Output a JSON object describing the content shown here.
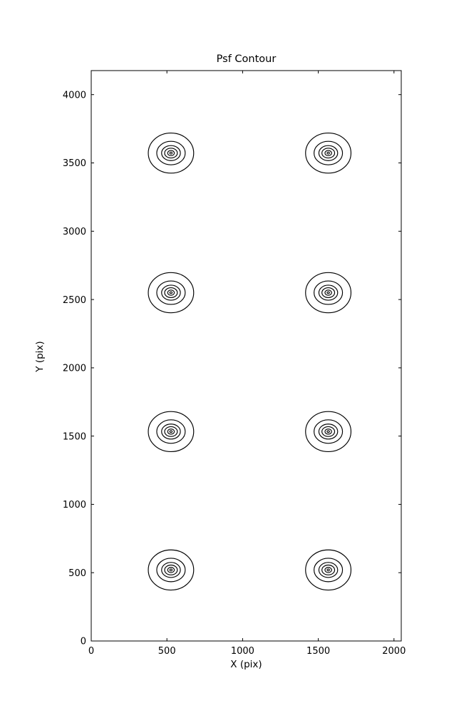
{
  "figure": {
    "background": "#ffffff"
  },
  "chart_data": {
    "type": "contour",
    "title": "Psf Contour",
    "xlabel": "X (pix)",
    "ylabel": "Y (pix)",
    "xlim": [
      0,
      2048
    ],
    "ylim": [
      0,
      4176
    ],
    "xticks": [
      0,
      500,
      1000,
      1500,
      2000
    ],
    "yticks": [
      0,
      500,
      1000,
      1500,
      2000,
      2500,
      3000,
      3500,
      4000
    ],
    "grid": false,
    "legend": "none",
    "line_color": "#000000",
    "centers": [
      [
        527,
        520
      ],
      [
        1566,
        520
      ],
      [
        527,
        1533
      ],
      [
        1566,
        1533
      ],
      [
        527,
        2550
      ],
      [
        1566,
        2550
      ],
      [
        527,
        3572
      ],
      [
        1566,
        3572
      ]
    ],
    "ring_semi_axes": [
      [
        150,
        147
      ],
      [
        94,
        86
      ],
      [
        62,
        55
      ],
      [
        42,
        36
      ],
      [
        22,
        19
      ],
      [
        8,
        7
      ]
    ]
  }
}
